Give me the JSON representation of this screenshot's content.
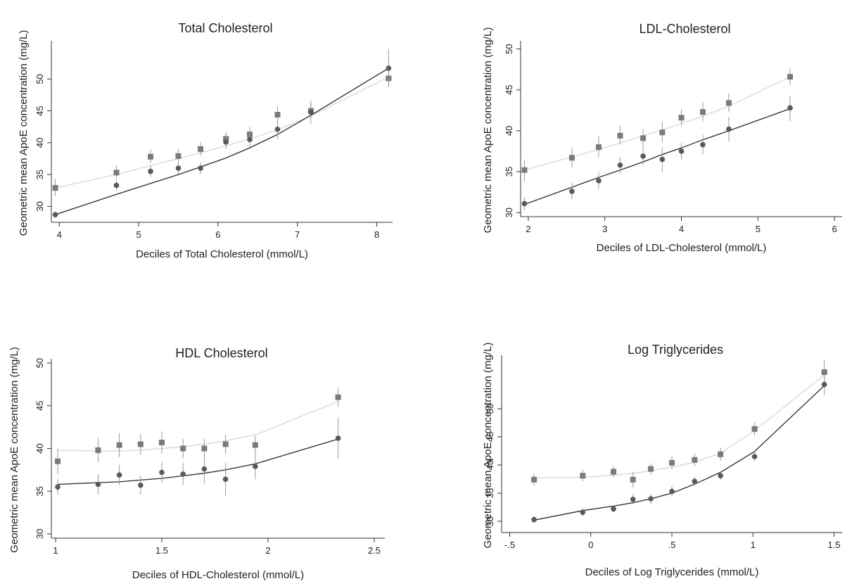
{
  "colors": {
    "background": "#ffffff",
    "axis": "#333333",
    "series_square_marker": "#7a7a7a",
    "series_square_line": "#d4d4d4",
    "series_circle_marker": "#5a5a5a",
    "series_circle_line": "#2a2a2a",
    "error_bar": "#9a9a9a"
  },
  "chart_data": [
    {
      "type": "scatter",
      "title": "Total Cholesterol",
      "xlabel": "Deciles of Total Cholesterol (mmol/L)",
      "ylabel": "Geometric mean ApoE concentration  (mg/L)",
      "xlim": [
        3.9,
        8.2
      ],
      "ylim": [
        27.5,
        56
      ],
      "xticks": [
        4,
        5,
        6,
        7,
        8
      ],
      "xtick_labels": [
        "4",
        "5",
        "6",
        "7",
        "8"
      ],
      "yticks": [
        30,
        35,
        40,
        45,
        50
      ],
      "ytick_labels": [
        "30",
        "35",
        "40",
        "45",
        "50"
      ],
      "grid": false,
      "series": [
        {
          "marker": "square",
          "x": [
            3.95,
            4.72,
            5.15,
            5.5,
            5.78,
            6.1,
            6.4,
            6.75,
            7.17,
            8.15
          ],
          "y": [
            32.9,
            35.3,
            37.8,
            37.9,
            39.0,
            40.6,
            41.3,
            44.4,
            45.0,
            50.1
          ],
          "ci_low": [
            31.6,
            34.3,
            36.8,
            36.9,
            38.0,
            39.5,
            40.2,
            43.3,
            43.9,
            48.9
          ],
          "ci_high": [
            34.3,
            36.4,
            38.9,
            39.0,
            40.1,
            41.7,
            42.5,
            45.6,
            46.2,
            51.4
          ],
          "fit": [
            [
              3.95,
              32.9
            ],
            [
              4.72,
              35.0
            ],
            [
              5.15,
              36.4
            ],
            [
              5.5,
              37.5
            ],
            [
              5.78,
              38.4
            ],
            [
              6.1,
              39.5
            ],
            [
              6.4,
              40.6
            ],
            [
              6.75,
              42.0
            ],
            [
              7.17,
              44.2
            ],
            [
              8.15,
              50.3
            ]
          ]
        },
        {
          "marker": "circle",
          "x": [
            3.95,
            4.72,
            5.15,
            5.5,
            5.78,
            6.1,
            6.4,
            6.75,
            7.17,
            8.15
          ],
          "y": [
            28.7,
            33.3,
            35.5,
            36.0,
            36.0,
            40.1,
            40.5,
            42.1,
            44.8,
            51.7
          ],
          "ci_low": [
            28.2,
            32.5,
            34.6,
            35.1,
            35.1,
            39.0,
            39.3,
            40.6,
            43.0,
            48.7
          ],
          "ci_high": [
            29.2,
            34.1,
            36.4,
            36.9,
            36.9,
            41.2,
            41.7,
            43.6,
            46.6,
            54.7
          ],
          "fit": [
            [
              3.95,
              28.7
            ],
            [
              4.72,
              31.9
            ],
            [
              5.15,
              33.6
            ],
            [
              5.5,
              35.0
            ],
            [
              5.78,
              36.2
            ],
            [
              6.1,
              37.6
            ],
            [
              6.4,
              39.2
            ],
            [
              6.75,
              41.3
            ],
            [
              7.17,
              44.3
            ],
            [
              8.15,
              51.7
            ]
          ]
        }
      ]
    },
    {
      "type": "scatter",
      "title": "LDL-Cholesterol",
      "xlabel": "Deciles of LDL-Cholesterol (mmol/L)",
      "ylabel": "Geometric mean ApoE concentration  (mg/L)",
      "xlim": [
        1.9,
        6.1
      ],
      "ylim": [
        29.5,
        51
      ],
      "xticks": [
        2,
        3,
        4,
        5,
        6
      ],
      "xtick_labels": [
        "2",
        "3",
        "4",
        "5",
        "6"
      ],
      "yticks": [
        30,
        35,
        40,
        45,
        50
      ],
      "ytick_labels": [
        "30",
        "35",
        "40",
        "45",
        "50"
      ],
      "grid": false,
      "series": [
        {
          "marker": "square",
          "x": [
            1.95,
            2.57,
            2.92,
            3.2,
            3.5,
            3.75,
            4.0,
            4.28,
            4.62,
            5.42
          ],
          "y": [
            35.2,
            36.7,
            38.0,
            39.4,
            39.1,
            39.8,
            41.6,
            42.3,
            43.4,
            46.6
          ],
          "ci_low": [
            33.8,
            35.5,
            36.8,
            38.3,
            38.0,
            38.6,
            40.6,
            41.2,
            42.3,
            45.6
          ],
          "ci_high": [
            36.5,
            37.9,
            39.3,
            40.6,
            40.2,
            41.1,
            42.6,
            43.5,
            44.6,
            47.6
          ],
          "fit": [
            [
              1.95,
              35.2
            ],
            [
              2.57,
              36.8
            ],
            [
              2.92,
              37.7
            ],
            [
              3.2,
              38.5
            ],
            [
              3.5,
              39.4
            ],
            [
              3.75,
              40.1
            ],
            [
              4.0,
              40.9
            ],
            [
              4.28,
              41.8
            ],
            [
              4.62,
              43.0
            ],
            [
              5.42,
              46.6
            ]
          ]
        },
        {
          "marker": "circle",
          "x": [
            1.95,
            2.57,
            2.92,
            3.2,
            3.5,
            3.75,
            4.0,
            4.28,
            4.62,
            5.42
          ],
          "y": [
            31.1,
            32.6,
            33.9,
            35.8,
            36.9,
            36.5,
            37.5,
            38.3,
            40.2,
            42.8
          ],
          "ci_low": [
            30.3,
            31.6,
            32.9,
            34.8,
            35.8,
            35.0,
            36.5,
            37.1,
            38.7,
            41.2
          ],
          "ci_high": [
            31.9,
            33.6,
            34.9,
            36.8,
            38.0,
            38.0,
            38.5,
            39.5,
            41.7,
            44.3
          ],
          "fit": [
            [
              1.95,
              31.0
            ],
            [
              2.57,
              33.1
            ],
            [
              2.92,
              34.3
            ],
            [
              3.2,
              35.2
            ],
            [
              3.5,
              36.2
            ],
            [
              3.75,
              37.1
            ],
            [
              4.0,
              37.9
            ],
            [
              4.28,
              38.9
            ],
            [
              4.62,
              40.0
            ],
            [
              5.42,
              42.7
            ]
          ]
        }
      ]
    },
    {
      "type": "scatter",
      "title": "HDL Cholesterol",
      "xlabel": "Deciles of HDL-Cholesterol (mmol/L)",
      "ylabel": "Geometric mean ApoE concentration  (mg/L)",
      "xlim": [
        0.98,
        2.55
      ],
      "ylim": [
        29.5,
        50.5
      ],
      "xticks": [
        1,
        1.5,
        2,
        2.5
      ],
      "xtick_labels": [
        "1",
        "1.5",
        "2",
        "2.5"
      ],
      "yticks": [
        30,
        35,
        40,
        45,
        50
      ],
      "ytick_labels": [
        "30",
        "35",
        "40",
        "45",
        "50"
      ],
      "grid": false,
      "series": [
        {
          "marker": "square",
          "x": [
            1.01,
            1.2,
            1.3,
            1.4,
            1.5,
            1.6,
            1.7,
            1.8,
            1.94,
            2.33
          ],
          "y": [
            38.5,
            39.8,
            40.4,
            40.5,
            40.7,
            40.0,
            40.0,
            40.5,
            40.4,
            46.0
          ],
          "ci_low": [
            37.0,
            38.4,
            39.0,
            39.3,
            39.4,
            38.9,
            38.9,
            39.4,
            39.3,
            44.9
          ],
          "ci_high": [
            40.0,
            41.2,
            41.8,
            41.7,
            42.0,
            41.1,
            41.1,
            41.6,
            41.5,
            47.1
          ],
          "fit": [
            [
              1.01,
              39.8
            ],
            [
              1.2,
              39.7
            ],
            [
              1.3,
              39.7
            ],
            [
              1.4,
              39.8
            ],
            [
              1.5,
              40.0
            ],
            [
              1.6,
              40.2
            ],
            [
              1.7,
              40.5
            ],
            [
              1.8,
              40.9
            ],
            [
              1.94,
              41.6
            ],
            [
              2.33,
              45.5
            ]
          ]
        },
        {
          "marker": "circle",
          "x": [
            1.01,
            1.2,
            1.3,
            1.4,
            1.5,
            1.6,
            1.7,
            1.8,
            1.94,
            2.33
          ],
          "y": [
            35.5,
            35.8,
            36.9,
            35.7,
            37.2,
            37.0,
            37.6,
            36.4,
            37.9,
            41.2
          ],
          "ci_low": [
            34.6,
            34.6,
            35.7,
            34.6,
            36.0,
            35.7,
            35.9,
            34.5,
            36.4,
            38.8
          ],
          "ci_high": [
            36.4,
            37.0,
            38.1,
            36.8,
            38.4,
            38.3,
            39.3,
            38.3,
            39.4,
            43.6
          ],
          "fit": [
            [
              1.01,
              35.8
            ],
            [
              1.2,
              36.0
            ],
            [
              1.3,
              36.1
            ],
            [
              1.4,
              36.3
            ],
            [
              1.5,
              36.5
            ],
            [
              1.6,
              36.8
            ],
            [
              1.7,
              37.1
            ],
            [
              1.8,
              37.5
            ],
            [
              1.94,
              38.2
            ],
            [
              2.33,
              41.1
            ]
          ]
        }
      ]
    },
    {
      "type": "scatter",
      "title": "Log Triglycerides",
      "xlabel": "Deciles of Log Triglycerides (mmol/L)",
      "ylabel": "Geometric mean ApoE concentration  (mg/L)",
      "xlim": [
        -0.55,
        1.55
      ],
      "ylim": [
        28,
        59.5
      ],
      "xticks": [
        -0.5,
        0,
        0.5,
        1,
        1.5
      ],
      "xtick_labels": [
        "-.5",
        "0",
        ".5",
        "1",
        "1.5"
      ],
      "yticks": [
        30,
        35,
        40,
        45,
        50
      ],
      "ytick_labels": [
        "30",
        "35",
        "40",
        "45",
        "50"
      ],
      "grid": false,
      "series": [
        {
          "marker": "square",
          "x": [
            -0.35,
            -0.05,
            0.14,
            0.26,
            0.37,
            0.5,
            0.64,
            0.8,
            1.01,
            1.44
          ],
          "y": [
            37.4,
            38.1,
            38.8,
            37.4,
            39.3,
            40.4,
            40.9,
            41.9,
            46.4,
            56.5
          ],
          "ci_low": [
            36.4,
            37.1,
            37.8,
            36.0,
            38.3,
            39.3,
            39.8,
            40.8,
            45.2,
            54.5
          ],
          "ci_high": [
            38.5,
            39.1,
            39.8,
            38.8,
            40.3,
            41.5,
            42.0,
            43.1,
            47.6,
            58.6
          ],
          "fit": [
            [
              -0.35,
              37.7
            ],
            [
              -0.05,
              37.8
            ],
            [
              0.14,
              38.2
            ],
            [
              0.26,
              38.5
            ],
            [
              0.37,
              39.0
            ],
            [
              0.5,
              39.6
            ],
            [
              0.64,
              40.5
            ],
            [
              0.8,
              42.1
            ],
            [
              1.01,
              46.1
            ],
            [
              1.44,
              56.0
            ]
          ]
        },
        {
          "marker": "circle",
          "x": [
            -0.35,
            -0.05,
            0.14,
            0.26,
            0.37,
            0.5,
            0.64,
            0.8,
            1.01,
            1.44
          ],
          "y": [
            30.3,
            31.6,
            32.2,
            33.9,
            34.0,
            35.3,
            37.1,
            38.1,
            41.5,
            54.3
          ],
          "ci_low": [
            29.7,
            30.9,
            31.6,
            33.0,
            33.1,
            34.4,
            36.3,
            37.3,
            40.6,
            52.4
          ],
          "ci_high": [
            30.9,
            32.3,
            32.8,
            34.8,
            34.9,
            36.2,
            37.9,
            38.9,
            42.4,
            56.2
          ],
          "fit": [
            [
              -0.35,
              30.2
            ],
            [
              -0.05,
              31.9
            ],
            [
              0.14,
              32.7
            ],
            [
              0.26,
              33.3
            ],
            [
              0.37,
              34.0
            ],
            [
              0.5,
              35.0
            ],
            [
              0.64,
              36.6
            ],
            [
              0.8,
              38.7
            ],
            [
              1.01,
              42.4
            ],
            [
              1.44,
              54.1
            ]
          ]
        }
      ]
    }
  ]
}
